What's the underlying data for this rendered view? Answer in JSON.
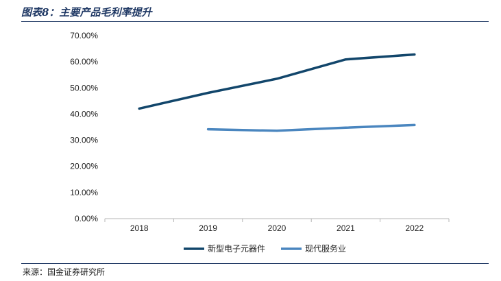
{
  "figure": {
    "title": "图表8：主要产品毛利率提升",
    "source": "来源：国金证券研究所"
  },
  "chart_data": {
    "type": "line",
    "title": "",
    "xlabel": "",
    "ylabel": "",
    "categories": [
      "2018",
      "2019",
      "2020",
      "2021",
      "2022"
    ],
    "ylim": [
      0,
      0.7
    ],
    "yticks": [
      0,
      0.1,
      0.2,
      0.3,
      0.4,
      0.5,
      0.6,
      0.7
    ],
    "ytick_labels": [
      "0.00%",
      "10.00%",
      "20.00%",
      "30.00%",
      "40.00%",
      "50.00%",
      "60.00%",
      "70.00%"
    ],
    "grid": false,
    "legend_position": "bottom",
    "series": [
      {
        "name": "新型电子元器件",
        "color": "#12466b",
        "values": [
          0.421,
          0.481,
          0.535,
          0.609,
          0.628
        ]
      },
      {
        "name": "现代服务业",
        "color": "#4a86bf",
        "values": [
          null,
          0.342,
          0.336,
          0.348,
          0.358
        ]
      }
    ]
  }
}
